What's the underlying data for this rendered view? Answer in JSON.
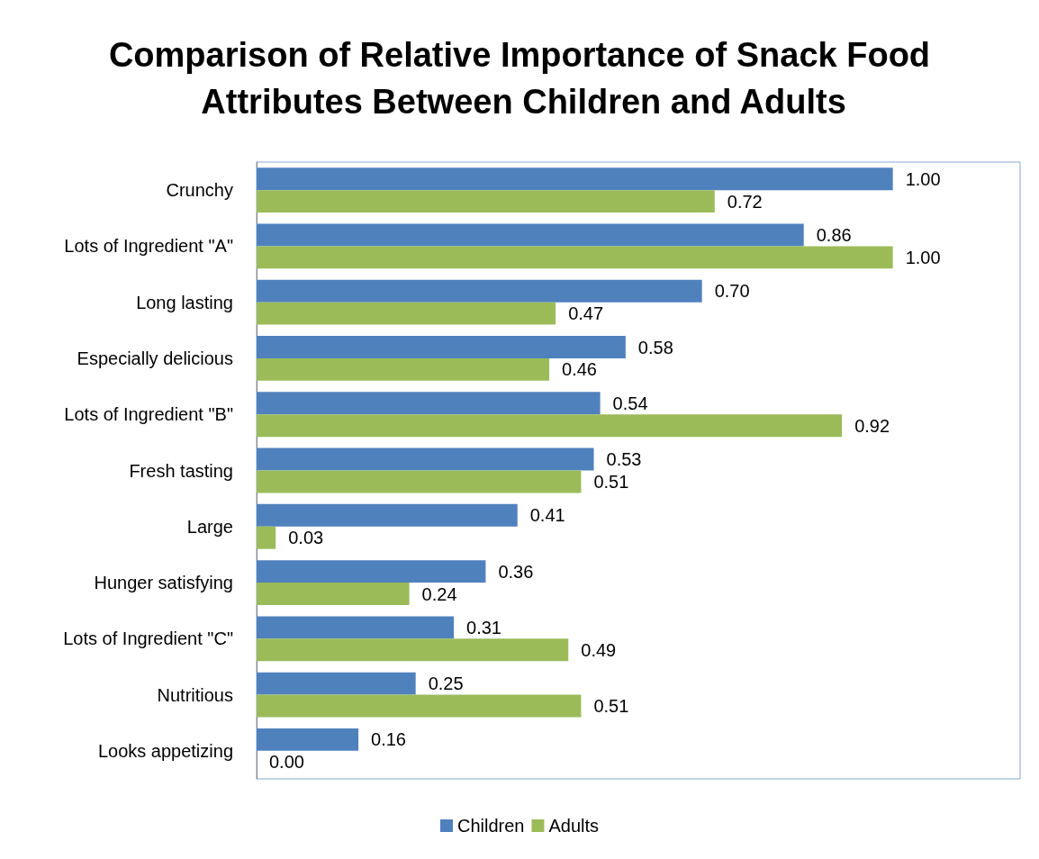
{
  "chart_data": {
    "type": "bar",
    "orientation": "horizontal",
    "title": "Comparison of Relative Importance of Snack Food Attributes Between Children and Adults",
    "categories": [
      "Crunchy",
      "Lots of Ingredient \"A\"",
      "Long lasting",
      "Especially delicious",
      "Lots of Ingredient \"B\"",
      "Fresh tasting",
      "Large",
      "Hunger satisfying",
      "Lots of Ingredient \"C\"",
      "Nutritious",
      "Looks appetizing"
    ],
    "series": [
      {
        "name": "Children",
        "color": "#4f81bd",
        "values": [
          1.0,
          0.86,
          0.7,
          0.58,
          0.54,
          0.53,
          0.41,
          0.36,
          0.31,
          0.25,
          0.16
        ],
        "value_labels": [
          "1.00",
          "0.86",
          "0.70",
          "0.58",
          "0.54",
          "0.53",
          "0.41",
          "0.36",
          "0.31",
          "0.25",
          "0.16"
        ]
      },
      {
        "name": "Adults",
        "color": "#9bbb59",
        "values": [
          0.72,
          1.0,
          0.47,
          0.46,
          0.92,
          0.51,
          0.03,
          0.24,
          0.49,
          0.51,
          0.0
        ],
        "value_labels": [
          "0.72",
          "1.00",
          "0.47",
          "0.46",
          "0.92",
          "0.51",
          "0.03",
          "0.24",
          "0.49",
          "0.51",
          "0.00"
        ]
      }
    ],
    "xlim": [
      0,
      1.2
    ],
    "tick_labels": "y",
    "grid": false,
    "legend": "bottom"
  }
}
